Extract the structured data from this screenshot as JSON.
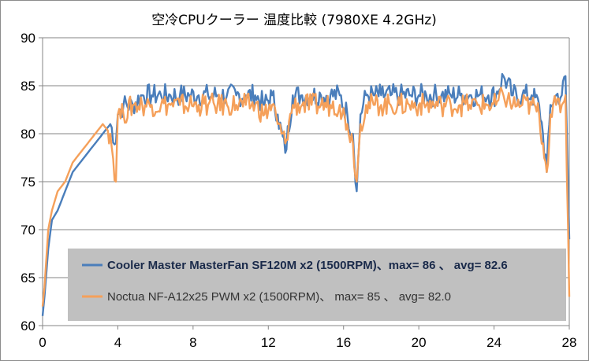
{
  "chart_data": {
    "type": "line",
    "title": "空冷CPUクーラー 温度比較 (7980XE 4.2GHz)",
    "xlabel": "",
    "ylabel": "",
    "xlim": [
      0,
      28
    ],
    "ylim": [
      60,
      90
    ],
    "x_ticks": [
      0,
      4,
      8,
      12,
      16,
      20,
      24,
      28
    ],
    "y_ticks": [
      60,
      65,
      70,
      75,
      80,
      85,
      90
    ],
    "grid": "horizontal",
    "legend_position": "lower-right inside plot, gray box",
    "legend_background": "#c0c0c0",
    "series": [
      {
        "name": "Cooler Master MasterFan SF120M x2 (1500RPM)、max= 86  、 avg= 82.6",
        "color": "#4a7ebb",
        "bold": true,
        "x": [
          0,
          0.1,
          0.3,
          0.5,
          0.8,
          1.2,
          1.6,
          2.0,
          2.4,
          2.8,
          3.2,
          3.6,
          3.9,
          4.0,
          4.3,
          4.8,
          5.3,
          5.8,
          6.3,
          6.8,
          7.3,
          7.8,
          8.3,
          8.8,
          9.3,
          9.8,
          10.3,
          10.8,
          11.3,
          11.8,
          12.2,
          12.5,
          12.9,
          13.3,
          13.8,
          14.3,
          14.8,
          15.3,
          15.8,
          16.2,
          16.5,
          16.7,
          16.9,
          17.2,
          17.6,
          18.0,
          18.5,
          19.0,
          19.5,
          20.0,
          20.4,
          20.8,
          21.2,
          21.7,
          22.2,
          22.7,
          23.2,
          23.7,
          24.1,
          24.5,
          25.0,
          25.5,
          26.0,
          26.4,
          26.6,
          26.8,
          27.0,
          27.3,
          27.6,
          27.8,
          28.0
        ],
        "y": [
          61,
          63,
          68,
          71,
          72,
          74,
          76,
          77,
          78,
          79,
          80,
          81,
          79,
          82,
          83,
          83,
          84,
          84,
          84,
          84,
          84,
          84,
          84,
          84,
          84,
          84,
          84,
          84,
          84,
          83,
          84,
          82,
          78,
          84,
          84,
          84,
          84,
          84,
          84,
          82,
          80,
          74,
          82,
          84,
          84,
          84,
          84,
          84,
          84,
          84,
          84,
          84,
          84,
          84,
          84,
          84,
          84,
          84,
          84,
          86,
          84,
          84,
          84,
          83,
          80,
          76,
          83,
          84,
          84,
          86,
          69
        ]
      },
      {
        "name": "Noctua NF-A12x25 PWM x2 (1500RPM)、 max= 85  、 avg= 82.0",
        "color": "#f5a05a",
        "bold": false,
        "x": [
          0,
          0.1,
          0.3,
          0.5,
          0.8,
          1.2,
          1.6,
          2.0,
          2.4,
          2.8,
          3.2,
          3.6,
          3.9,
          4.0,
          4.3,
          4.8,
          5.3,
          5.8,
          6.3,
          6.8,
          7.3,
          7.8,
          8.3,
          8.8,
          9.3,
          9.8,
          10.3,
          10.8,
          11.3,
          11.8,
          12.2,
          12.5,
          12.9,
          13.3,
          13.8,
          14.3,
          14.8,
          15.3,
          15.8,
          16.2,
          16.5,
          16.7,
          16.9,
          17.2,
          17.6,
          18.0,
          18.5,
          19.0,
          19.5,
          20.0,
          20.4,
          20.8,
          21.2,
          21.7,
          22.2,
          22.7,
          23.2,
          23.7,
          24.1,
          24.5,
          25.0,
          25.5,
          26.0,
          26.4,
          26.6,
          26.8,
          27.0,
          27.3,
          27.6,
          27.8,
          28.0
        ],
        "y": [
          62,
          64,
          70,
          72,
          74,
          75,
          77,
          78,
          79,
          80,
          81,
          80,
          75,
          82,
          82,
          83,
          83,
          83,
          83,
          83,
          83,
          83,
          83,
          83,
          83,
          83,
          83,
          83,
          83,
          82,
          83,
          81,
          79,
          83,
          83,
          83,
          83,
          83,
          83,
          81,
          79,
          75,
          81,
          83,
          83,
          83,
          83,
          83,
          83,
          83,
          83,
          83,
          83,
          83,
          83,
          83,
          83,
          83,
          83,
          84,
          83,
          83,
          83,
          82,
          79,
          76,
          82,
          83,
          83,
          84,
          63
        ]
      }
    ]
  }
}
